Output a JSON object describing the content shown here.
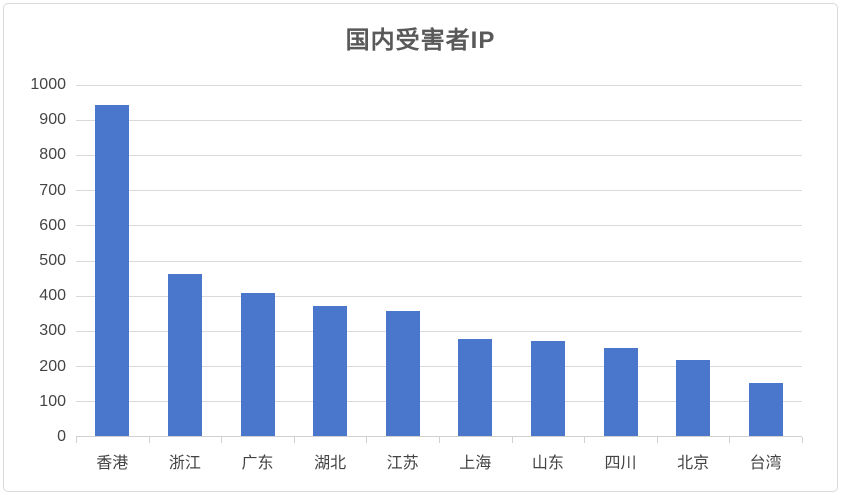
{
  "window": {
    "background_color": "#ffffff",
    "border_color": "#d9d9d9"
  },
  "chart_data": {
    "type": "bar",
    "title": "国内受害者IP",
    "categories": [
      "香港",
      "浙江",
      "广东",
      "湖北",
      "江苏",
      "上海",
      "山东",
      "四川",
      "北京",
      "台湾"
    ],
    "values": [
      940,
      460,
      405,
      370,
      355,
      275,
      270,
      250,
      215,
      150
    ],
    "xlabel": "",
    "ylabel": "",
    "ylim": [
      0,
      1000
    ],
    "yticks": [
      0,
      100,
      200,
      300,
      400,
      500,
      600,
      700,
      800,
      900,
      1000
    ],
    "grid": "horizontal",
    "legend_position": "none",
    "bar_color": "#4a77cb",
    "gridline_color": "#d9d9d9",
    "axis_line_color": "#d0d0d0",
    "title_color": "#595959",
    "tick_label_color": "#444444"
  }
}
